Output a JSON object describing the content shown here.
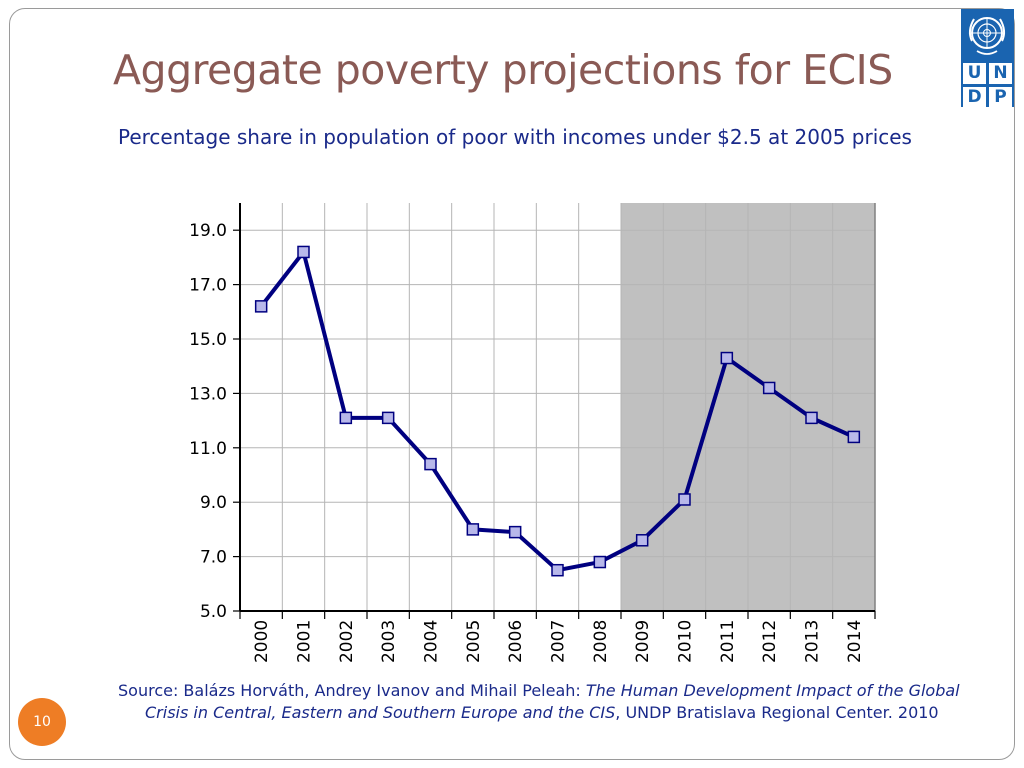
{
  "slide": {
    "title": "Aggregate poverty projections for ECIS",
    "subtitle": "Percentage share in population of poor with incomes under $2.5 at 2005 prices",
    "source_prefix": "Source: Balázs Horváth, Andrey Ivanov and Mihail Peleah:  ",
    "source_italic": "The Human Development Impact of the Global Crisis in Central, Eastern and Southern Europe and the CIS",
    "source_suffix": ", UNDP Bratislava Regional Center. 2010",
    "page_number": "10"
  },
  "logo": {
    "letters": [
      "U",
      "N",
      "D",
      "P"
    ],
    "color": "#1a64b0"
  },
  "colors": {
    "title": "#8a5a55",
    "text": "#1a2a8a",
    "line": "#000080",
    "marker_fill": "#b8b8ea",
    "projection_shade": "#c0c0c0",
    "badge": "#ee7d25"
  },
  "chart_data": {
    "type": "line",
    "categories": [
      "2000",
      "2001",
      "2002",
      "2003",
      "2004",
      "2005",
      "2006",
      "2007",
      "2008",
      "2009",
      "2010",
      "2011",
      "2012",
      "2013",
      "2014"
    ],
    "series": [
      {
        "values": [
          16.2,
          18.2,
          12.1,
          12.1,
          10.4,
          8.0,
          7.9,
          6.5,
          6.8,
          7.6,
          9.1,
          14.3,
          13.2,
          12.1,
          11.4
        ]
      }
    ],
    "ylim": [
      5.0,
      20.0
    ],
    "yticks": [
      "5.0",
      "7.0",
      "9.0",
      "11.0",
      "13.0",
      "15.0",
      "17.0",
      "19.0"
    ],
    "ytick_values": [
      5,
      7,
      9,
      11,
      13,
      15,
      17,
      19
    ],
    "shaded_from": "2009",
    "grid": true,
    "legend": "none"
  }
}
